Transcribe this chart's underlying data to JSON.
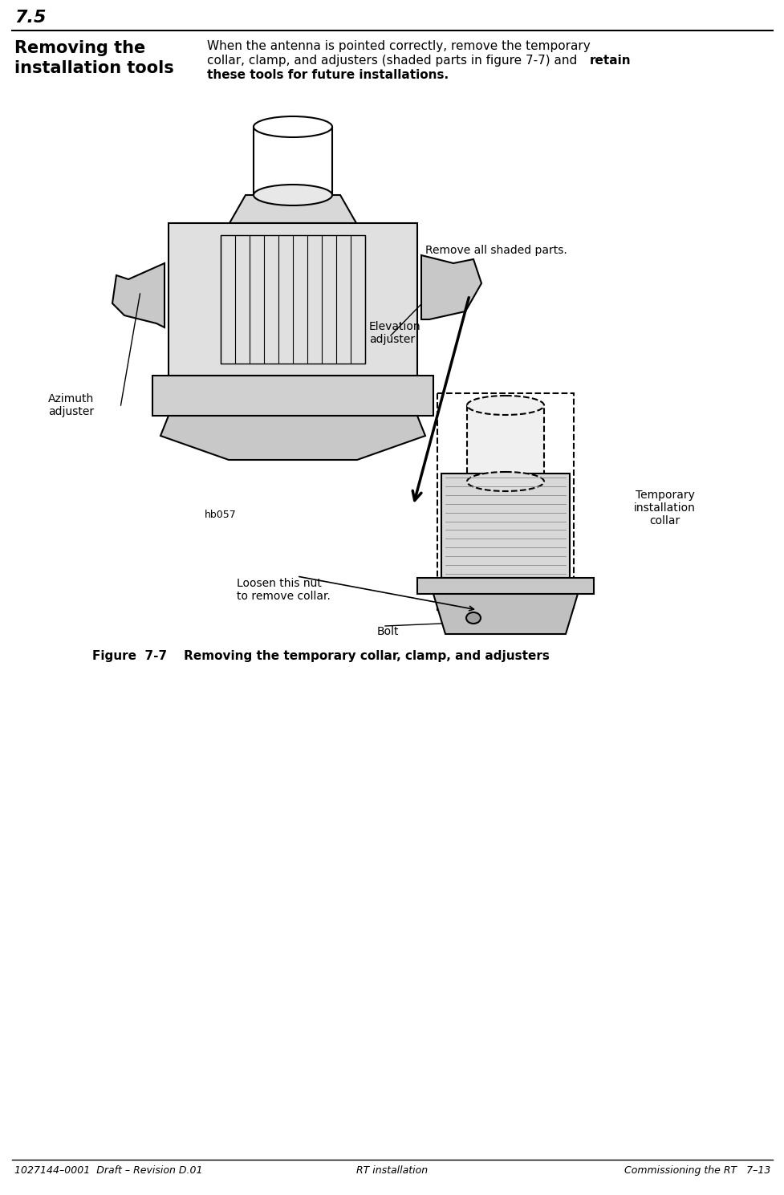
{
  "page_number": "7.5",
  "section_title_line1": "Removing the",
  "section_title_line2": "installation tools",
  "body_text_line1": "When the antenna is pointed correctly, remove the temporary",
  "body_text_line2": "collar, clamp, and adjusters (shaded parts in figure 7-7) and ",
  "body_text_bold": "retain",
  "body_text_line3": "these tools for future installations.",
  "figure_caption": "Figure  7-7    Removing the temporary collar, clamp, and adjusters",
  "footer_left": "1027144–0001  Draft – Revision D.01",
  "footer_center": "RT installation",
  "footer_right": "Commissioning the RT   7–13",
  "label_azimuth": "Azimuth\nadjuster",
  "label_elevation": "Elevation\nadjuster",
  "label_remove": "Remove all shaded parts.",
  "label_loosen": "Loosen this nut\nto remove collar.",
  "label_bolt": "Bolt",
  "label_collar": "Temporary\ninstallation\ncollar",
  "label_hb057": "hb057",
  "bg_color": "#ffffff",
  "text_color": "#000000",
  "line_color": "#000000"
}
